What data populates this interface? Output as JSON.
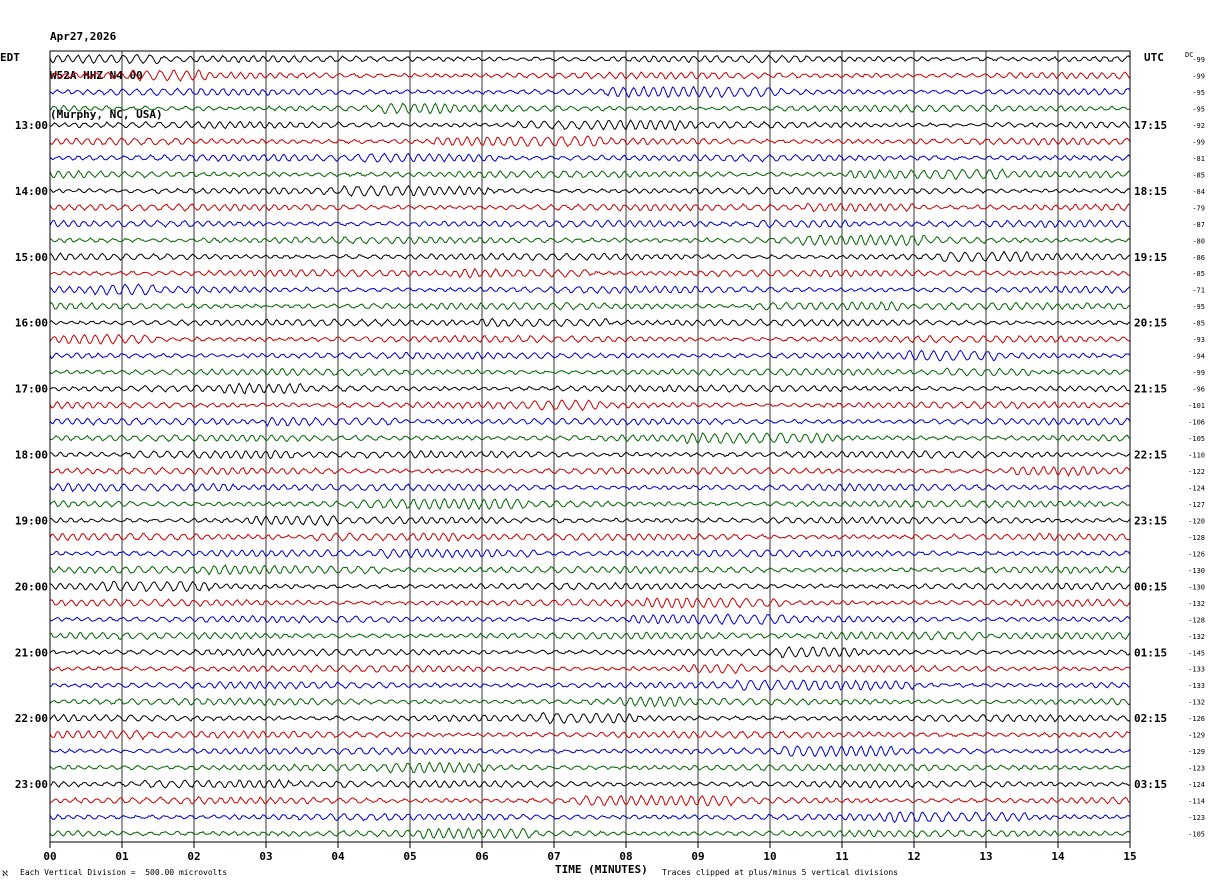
{
  "header": {
    "date": "Apr27,2026",
    "station": "W52A HHZ N4 00",
    "location": "(Murphy, NC, USA)"
  },
  "labels": {
    "left_timezone": "EDT",
    "right_timezone": "UTC",
    "dc_label": "DC",
    "corner_mark": "ℵ"
  },
  "footer": {
    "scale": "Each Vertical Division =  500.00 microvolts",
    "xaxis_title": "TIME (MINUTES)",
    "clip_note": "Traces clipped at plus/minus 5 vertical divisions"
  },
  "colors": {
    "trace_cycle": [
      "#000000",
      "#cc0000",
      "#0000cc",
      "#006600"
    ],
    "grid": "#000000",
    "background": "#ffffff"
  },
  "chart_data": {
    "type": "line",
    "subtype": "helicorder",
    "title": "W52A HHZ N4 00",
    "xlabel": "TIME (MINUTES)",
    "xlim": [
      0,
      15
    ],
    "x_ticks": [
      "00",
      "01",
      "02",
      "03",
      "04",
      "05",
      "06",
      "07",
      "08",
      "09",
      "10",
      "11",
      "12",
      "13",
      "14",
      "15"
    ],
    "row_minutes": 15,
    "row_count": 48,
    "left_time_labels": [
      {
        "row": 4,
        "label": "13:00"
      },
      {
        "row": 8,
        "label": "14:00"
      },
      {
        "row": 12,
        "label": "15:00"
      },
      {
        "row": 16,
        "label": "16:00"
      },
      {
        "row": 20,
        "label": "17:00"
      },
      {
        "row": 24,
        "label": "18:00"
      },
      {
        "row": 28,
        "label": "19:00"
      },
      {
        "row": 32,
        "label": "20:00"
      },
      {
        "row": 36,
        "label": "21:00"
      },
      {
        "row": 40,
        "label": "22:00"
      },
      {
        "row": 44,
        "label": "23:00"
      }
    ],
    "right_time_labels": [
      {
        "row": 4,
        "label": "17:15"
      },
      {
        "row": 8,
        "label": "18:15"
      },
      {
        "row": 12,
        "label": "19:15"
      },
      {
        "row": 16,
        "label": "20:15"
      },
      {
        "row": 20,
        "label": "21:15"
      },
      {
        "row": 24,
        "label": "22:15"
      },
      {
        "row": 28,
        "label": "23:15"
      },
      {
        "row": 32,
        "label": "00:15"
      },
      {
        "row": 36,
        "label": "01:15"
      },
      {
        "row": 40,
        "label": "02:15"
      },
      {
        "row": 44,
        "label": "03:15"
      }
    ],
    "dc_offsets": [
      "-99",
      "-99",
      "-95",
      "-95",
      "-92",
      "-99",
      "-81",
      "-85",
      "-84",
      "-79",
      "-87",
      "-80",
      "-86",
      "-85",
      "-71",
      "-95",
      "-85",
      "-93",
      "-94",
      "-99",
      "-96",
      "-101",
      "-106",
      "-105",
      "-110",
      "-122",
      "-124",
      "-127",
      "-120",
      "-128",
      "-126",
      "-130",
      "-130",
      "-132",
      "-128",
      "-132",
      "-145",
      "-133",
      "-133",
      "-132",
      "-126",
      "-129",
      "-129",
      "-123",
      "-124",
      "-114",
      "-123",
      "-105"
    ],
    "units": "microvolts",
    "vertical_division_microvolts": 500.0,
    "clip_divisions": 5
  }
}
